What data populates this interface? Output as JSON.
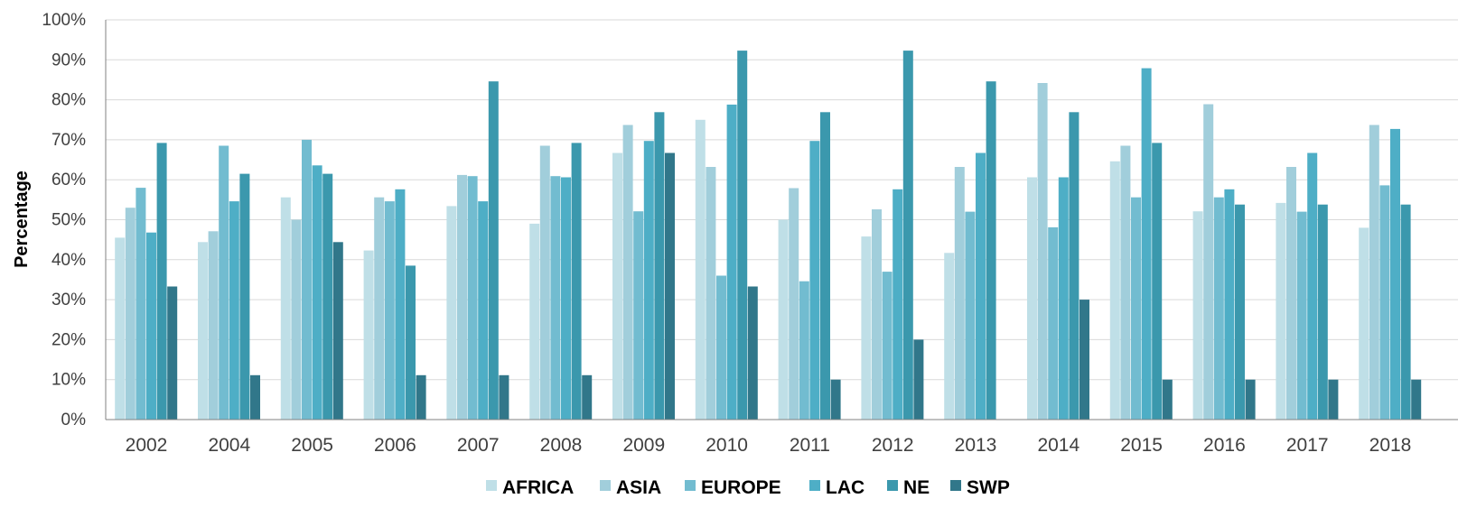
{
  "chart_data": {
    "type": "bar",
    "title": "",
    "xlabel": "",
    "ylabel": "Percentage",
    "ylim": [
      0,
      100
    ],
    "y_tick_labels": [
      "0%",
      "10%",
      "20%",
      "30%",
      "40%",
      "50%",
      "60%",
      "70%",
      "80%",
      "90%",
      "100%"
    ],
    "grid": true,
    "legend_position": "bottom",
    "categories": [
      "2002",
      "2004",
      "2005",
      "2006",
      "2007",
      "2008",
      "2009",
      "2010",
      "2011",
      "2012",
      "2013",
      "2014",
      "2015",
      "2016",
      "2017",
      "2018"
    ],
    "series": [
      {
        "name": "AFRICA",
        "color": "#bfdfe7",
        "values": [
          45.5,
          44.4,
          55.6,
          42.3,
          53.4,
          49.0,
          66.7,
          75.0,
          50.0,
          45.8,
          41.7,
          60.6,
          64.6,
          52.1,
          54.2,
          48.0
        ]
      },
      {
        "name": "ASIA",
        "color": "#a1cedb",
        "values": [
          53.0,
          47.1,
          50.0,
          55.6,
          61.2,
          68.5,
          73.7,
          63.2,
          57.9,
          52.6,
          63.2,
          84.2,
          68.5,
          78.9,
          63.2,
          73.7
        ]
      },
      {
        "name": "EUROPE",
        "color": "#72bcd0",
        "values": [
          58.0,
          68.5,
          70.0,
          54.6,
          60.9,
          60.9,
          52.1,
          36.0,
          34.6,
          37.0,
          52.0,
          48.1,
          55.6,
          55.6,
          52.0,
          58.6
        ]
      },
      {
        "name": "LAC",
        "color": "#4eaec6",
        "values": [
          46.8,
          54.6,
          63.6,
          57.6,
          54.6,
          60.6,
          69.7,
          78.8,
          69.7,
          57.6,
          66.7,
          60.6,
          87.9,
          57.6,
          66.7,
          72.7
        ]
      },
      {
        "name": "NE",
        "color": "#3b98ad",
        "values": [
          69.2,
          61.5,
          61.5,
          38.5,
          84.6,
          69.2,
          76.9,
          92.3,
          76.9,
          92.3,
          84.6,
          76.9,
          69.2,
          53.8,
          53.8,
          53.8
        ]
      },
      {
        "name": "SWP",
        "color": "#31778a",
        "values": [
          33.3,
          11.1,
          44.4,
          11.1,
          11.1,
          11.1,
          66.7,
          33.3,
          10.0,
          20.0,
          0,
          30.0,
          10.0,
          10.0,
          10.0,
          10.0
        ]
      }
    ]
  }
}
